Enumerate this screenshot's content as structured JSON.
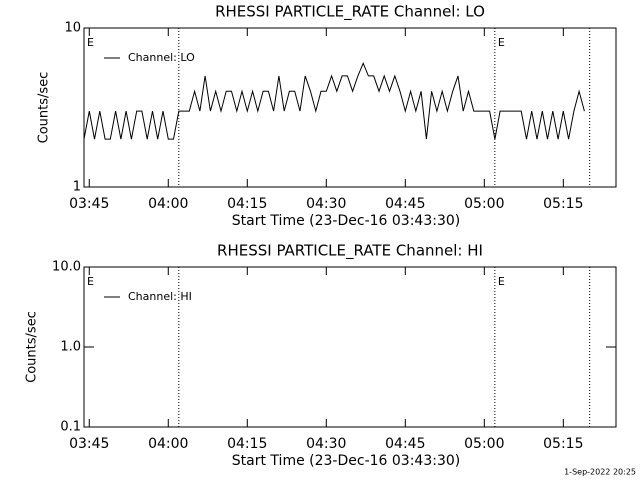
{
  "chart_data": [
    {
      "type": "line",
      "title": "RHESSI PARTICLE_RATE Channel: LO",
      "xlabel": "Start Time (23-Dec-16 03:43:30)",
      "ylabel": "Counts/sec",
      "log_y": true,
      "ylim": [
        1,
        10
      ],
      "yticks": [
        1,
        10
      ],
      "xlim": [
        "03:44",
        "05:25"
      ],
      "xticks": [
        "03:45",
        "04:00",
        "04:15",
        "04:30",
        "04:45",
        "05:00",
        "05:15"
      ],
      "markers": [
        "04:02",
        "05:02",
        "05:20"
      ],
      "annotations": [
        {
          "x": "03:44",
          "text": "E"
        },
        {
          "x": "05:02",
          "text": "E"
        }
      ],
      "legend": "upper left",
      "x": [
        "03:44",
        "03:45",
        "03:46",
        "03:47",
        "03:48",
        "03:49",
        "03:50",
        "03:51",
        "03:52",
        "03:53",
        "03:54",
        "03:55",
        "03:56",
        "03:57",
        "03:58",
        "03:59",
        "04:00",
        "04:01",
        "04:02",
        "04:03",
        "04:04",
        "04:05",
        "04:06",
        "04:07",
        "04:08",
        "04:09",
        "04:10",
        "04:11",
        "04:12",
        "04:13",
        "04:14",
        "04:15",
        "04:16",
        "04:17",
        "04:18",
        "04:19",
        "04:20",
        "04:21",
        "04:22",
        "04:23",
        "04:24",
        "04:25",
        "04:26",
        "04:27",
        "04:28",
        "04:29",
        "04:30",
        "04:31",
        "04:32",
        "04:33",
        "04:34",
        "04:35",
        "04:36",
        "04:37",
        "04:38",
        "04:39",
        "04:40",
        "04:41",
        "04:42",
        "04:43",
        "04:44",
        "04:45",
        "04:46",
        "04:47",
        "04:48",
        "04:49",
        "04:50",
        "04:51",
        "04:52",
        "04:53",
        "04:54",
        "04:55",
        "04:56",
        "04:57",
        "04:58",
        "04:59",
        "05:00",
        "05:01",
        "05:02",
        "05:03",
        "05:04",
        "05:05",
        "05:06",
        "05:07",
        "05:08",
        "05:09",
        "05:10",
        "05:11",
        "05:12",
        "05:13",
        "05:14",
        "05:15",
        "05:16",
        "05:17",
        "05:18",
        "05:19"
      ],
      "series": [
        {
          "name": "Channel: LO",
          "color": "#000000",
          "values": [
            2,
            3,
            2,
            3,
            2,
            2,
            3,
            2,
            3,
            2,
            3,
            3,
            2,
            3,
            2,
            3,
            2,
            2,
            3,
            3,
            3,
            4,
            3,
            5,
            3,
            4,
            3,
            4,
            4,
            3,
            4,
            3,
            4,
            3,
            4,
            4,
            3,
            5,
            3,
            4,
            4,
            3,
            5,
            4,
            3,
            4,
            4,
            5,
            4,
            5,
            5,
            4,
            5,
            6,
            5,
            5,
            4,
            5,
            4,
            5,
            4,
            3,
            4,
            3,
            4,
            2,
            4,
            3,
            4,
            3,
            4,
            5,
            3,
            4,
            3,
            3,
            3,
            3,
            2,
            3,
            3,
            3,
            3,
            3,
            2,
            3,
            2,
            3,
            2,
            3,
            2,
            3,
            2,
            3,
            4,
            3
          ]
        }
      ]
    },
    {
      "type": "line",
      "title": "RHESSI PARTICLE_RATE Channel: HI",
      "xlabel": "Start Time (23-Dec-16 03:43:30)",
      "ylabel": "Counts/sec",
      "log_y": true,
      "ylim": [
        0.1,
        10
      ],
      "yticks": [
        0.1,
        {
          "value": 1,
          "label": "1.0"
        },
        {
          "value": 10,
          "label": "10.0"
        }
      ],
      "xlim": [
        "03:44",
        "05:25"
      ],
      "xticks": [
        "03:45",
        "04:00",
        "04:15",
        "04:30",
        "04:45",
        "05:00",
        "05:15"
      ],
      "markers": [
        "04:02",
        "05:02",
        "05:20"
      ],
      "annotations": [
        {
          "x": "03:44",
          "text": "E"
        },
        {
          "x": "05:02",
          "text": "E"
        }
      ],
      "legend": "upper left",
      "x": [],
      "series": [
        {
          "name": "Channel: HI",
          "color": "#000000",
          "values": []
        }
      ]
    }
  ],
  "footer": "1-Sep-2022 20:25"
}
